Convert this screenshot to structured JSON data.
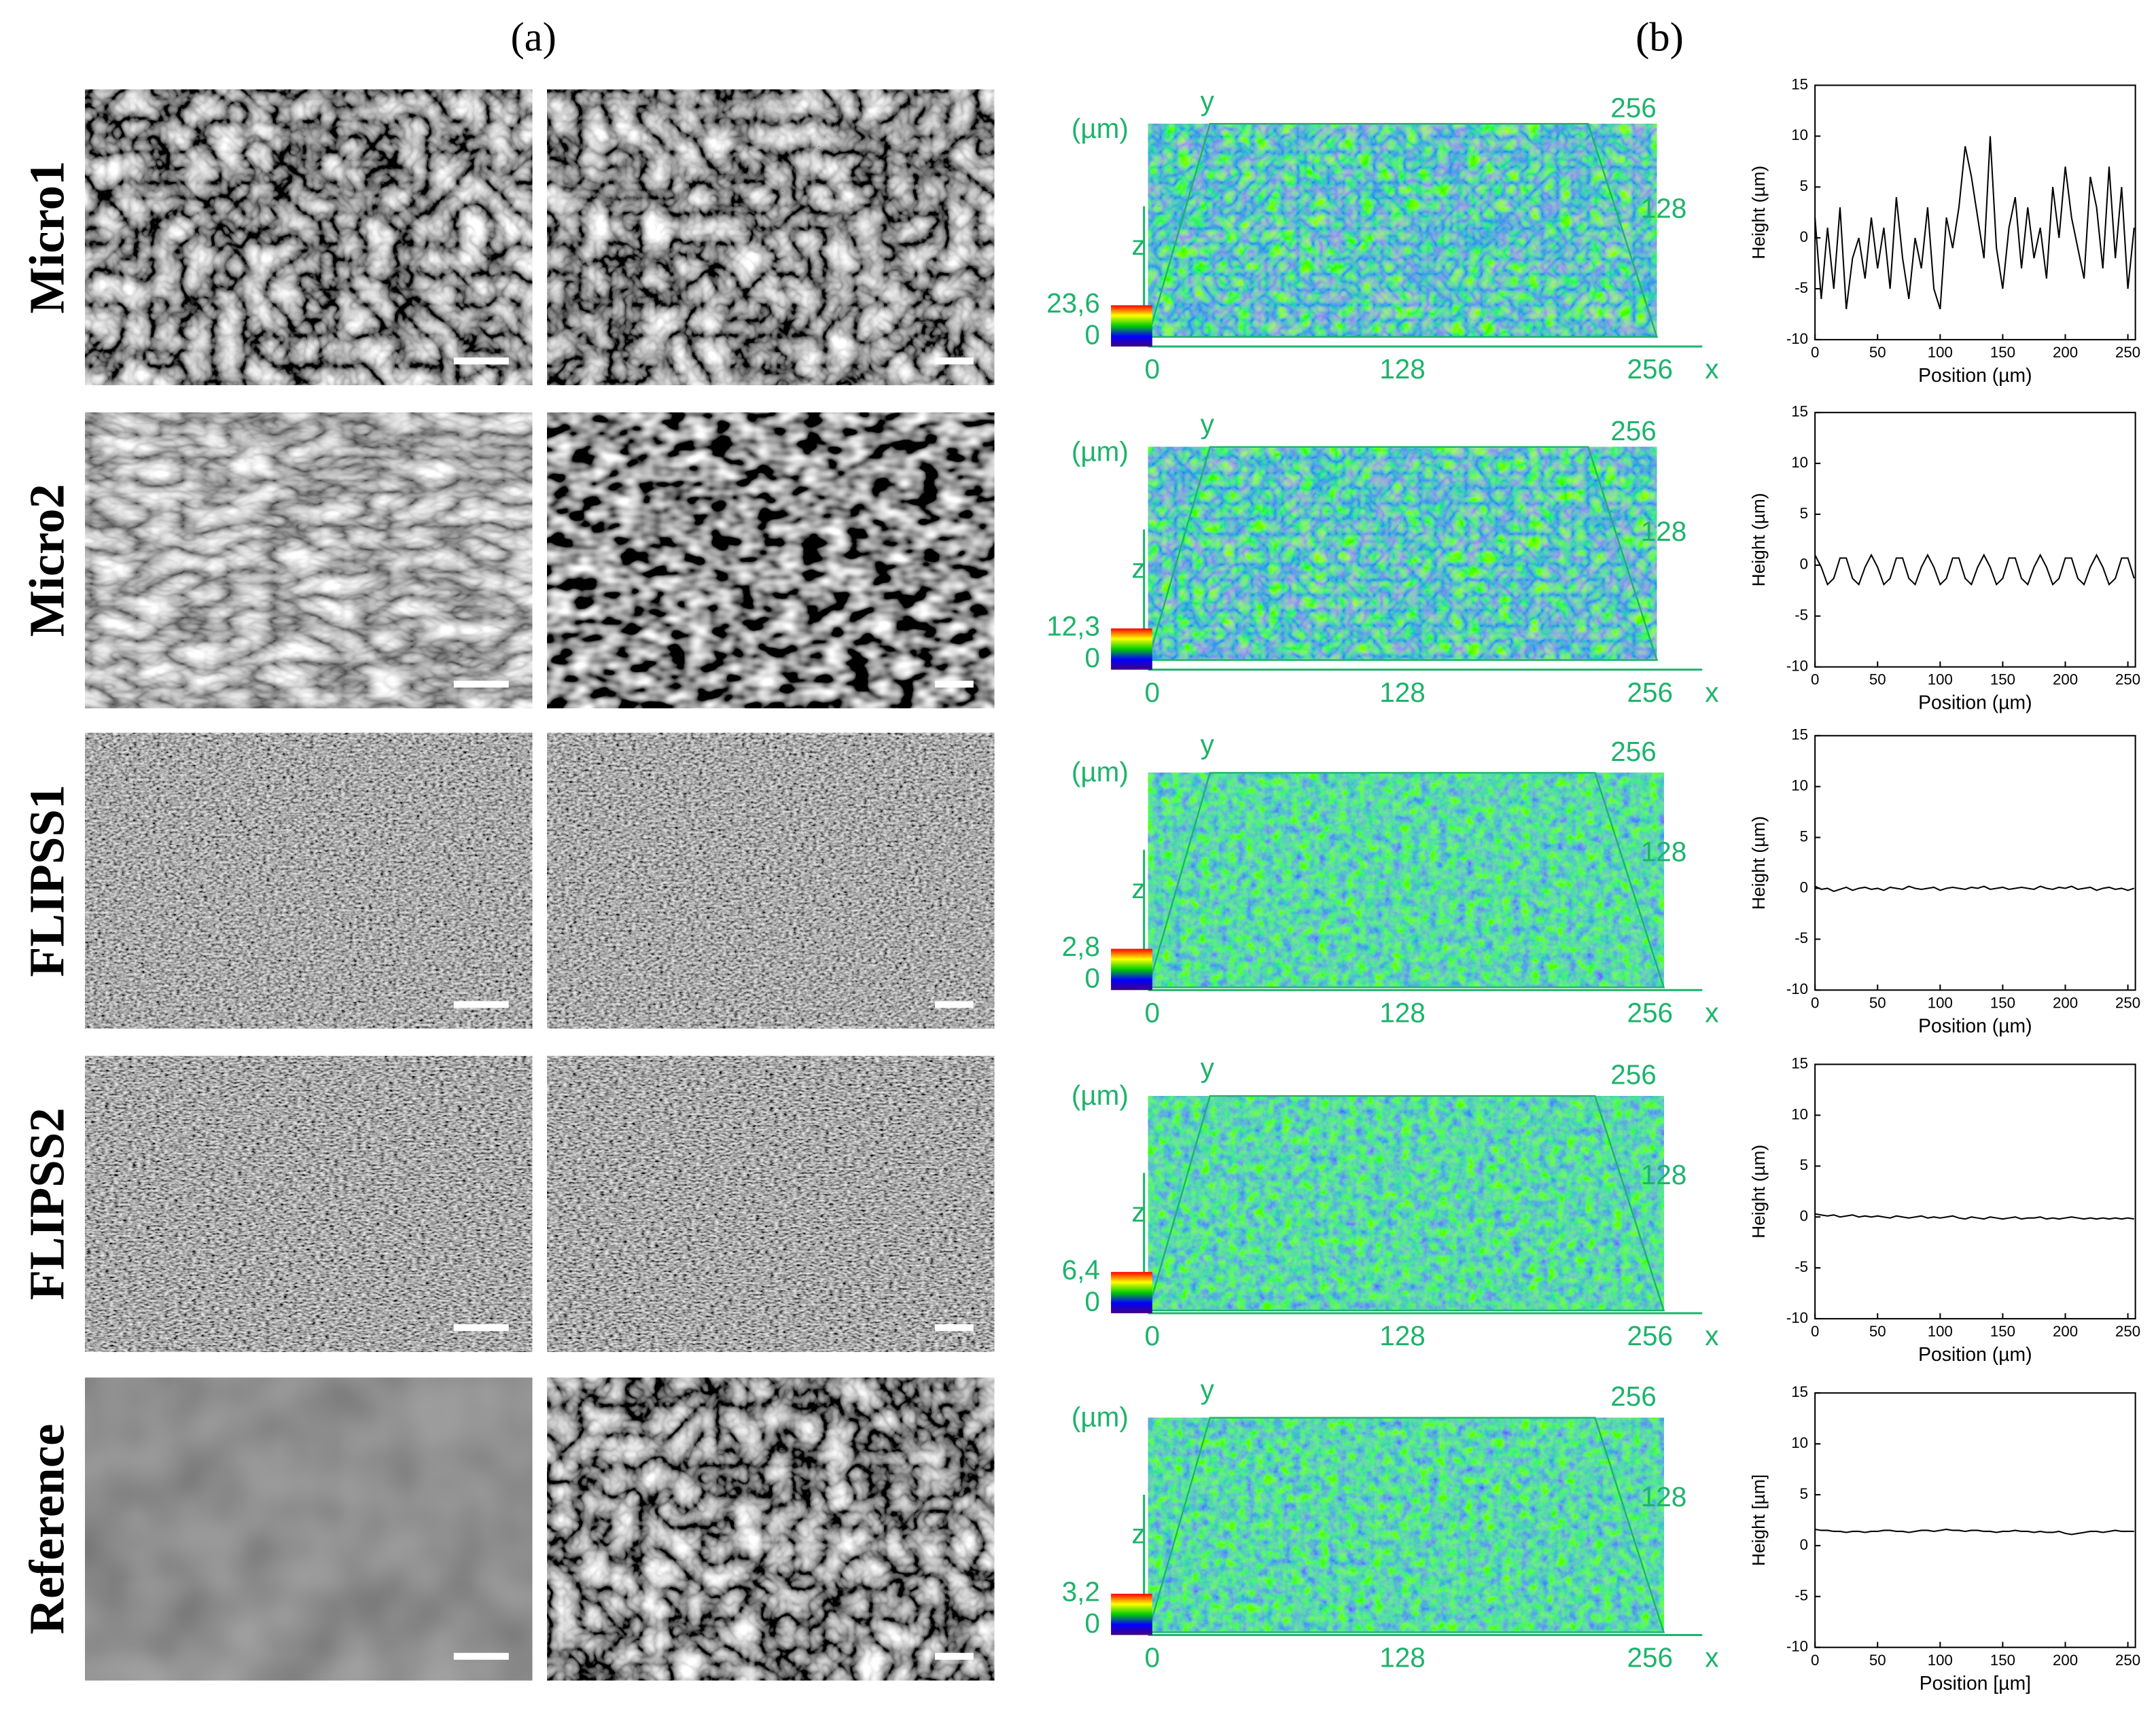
{
  "figure": {
    "panel_a": "(a)",
    "panel_b": "(b)",
    "rows": [
      {
        "label": "Micro1",
        "unit": "(µm)",
        "scale_max": "23,6",
        "scale_min": "0",
        "x_axis": "x",
        "y_axis": "y",
        "z_axis": "z",
        "x_ticks": [
          0,
          128,
          256
        ],
        "y_ticks": [
          128,
          256
        ]
      },
      {
        "label": "Micro2",
        "unit": "(µm)",
        "scale_max": "12,3",
        "scale_min": "0",
        "x_axis": "x",
        "y_axis": "y",
        "z_axis": "z",
        "x_ticks": [
          0,
          128,
          256
        ],
        "y_ticks": [
          128,
          256
        ]
      },
      {
        "label": "FLIPSS1",
        "unit": "(µm)",
        "scale_max": "2,8",
        "scale_min": "0",
        "x_axis": "x",
        "y_axis": "y",
        "z_axis": "z",
        "x_ticks": [
          0,
          128,
          256
        ],
        "y_ticks": [
          128,
          256
        ]
      },
      {
        "label": "FLIPSS2",
        "unit": "(µm)",
        "scale_max": "6,4",
        "scale_min": "0",
        "x_axis": "x",
        "y_axis": "y",
        "z_axis": "z",
        "x_ticks": [
          0,
          128,
          256
        ],
        "y_ticks": [
          128,
          256
        ]
      },
      {
        "label": "Reference",
        "unit": "(µm)",
        "scale_max": "3,2",
        "scale_min": "0",
        "x_axis": "x",
        "y_axis": "y",
        "z_axis": "z",
        "x_ticks": [
          0,
          128,
          256
        ],
        "y_ticks": [
          128,
          256
        ]
      }
    ]
  },
  "chart_data": [
    {
      "type": "line",
      "x_label": "Position (µm)",
      "y_label": "Height (µm)",
      "color": "#000000",
      "xlim": [
        0,
        256
      ],
      "ylim": [
        -10,
        15
      ],
      "xticks": [
        0,
        50,
        100,
        150,
        200,
        250
      ],
      "yticks": [
        -10,
        -5,
        0,
        5,
        10,
        15
      ],
      "x": [
        0,
        5,
        10,
        15,
        20,
        25,
        30,
        35,
        40,
        45,
        50,
        55,
        60,
        65,
        70,
        75,
        80,
        85,
        90,
        95,
        100,
        105,
        110,
        115,
        120,
        125,
        130,
        135,
        140,
        145,
        150,
        155,
        160,
        165,
        170,
        175,
        180,
        185,
        190,
        195,
        200,
        205,
        210,
        215,
        220,
        225,
        230,
        235,
        240,
        245,
        250,
        255
      ],
      "values": [
        2,
        -6,
        1,
        -5,
        3,
        -7,
        -2,
        0,
        -4,
        2,
        -3,
        1,
        -5,
        4,
        -2,
        -6,
        0,
        -3,
        3,
        -5,
        -7,
        2,
        -1,
        3,
        9,
        6,
        2,
        -2,
        10,
        -1,
        -5,
        1,
        4,
        -3,
        3,
        -2,
        1,
        -4,
        5,
        0,
        7,
        2,
        -1,
        -4,
        6,
        3,
        -3,
        7,
        -2,
        5,
        -5,
        1
      ]
    },
    {
      "type": "line",
      "x_label": "Position (µm)",
      "y_label": "Height (µm)",
      "color": "#000000",
      "xlim": [
        0,
        256
      ],
      "ylim": [
        -10,
        15
      ],
      "xticks": [
        0,
        50,
        100,
        150,
        200,
        250
      ],
      "yticks": [
        -10,
        -5,
        0,
        5,
        10,
        15
      ],
      "x": [
        0,
        5,
        10,
        15,
        20,
        25,
        30,
        35,
        40,
        45,
        50,
        55,
        60,
        65,
        70,
        75,
        80,
        85,
        90,
        95,
        100,
        105,
        110,
        115,
        120,
        125,
        130,
        135,
        140,
        145,
        150,
        155,
        160,
        165,
        170,
        175,
        180,
        185,
        190,
        195,
        200,
        205,
        210,
        215,
        220,
        225,
        230,
        235,
        240,
        245,
        250,
        255
      ],
      "values": [
        1.0,
        -0.2,
        -1.9,
        -1.3,
        0.7,
        0.7,
        -1.3,
        -1.9,
        -0.2,
        1.0,
        -0.2,
        -1.9,
        -1.3,
        0.7,
        0.7,
        -1.3,
        -1.9,
        -0.2,
        1.0,
        -0.2,
        -1.9,
        -1.3,
        0.7,
        0.7,
        -1.3,
        -1.9,
        -0.2,
        1.0,
        -0.2,
        -1.9,
        -1.3,
        0.7,
        0.7,
        -1.3,
        -1.9,
        -0.2,
        1.0,
        -0.2,
        -1.9,
        -1.3,
        0.7,
        0.7,
        -1.3,
        -1.9,
        -0.2,
        1.0,
        -0.2,
        -1.9,
        -1.3,
        0.7,
        0.7,
        -1.3
      ]
    },
    {
      "type": "line",
      "x_label": "Position (µm)",
      "y_label": "Height (µm)",
      "color": "#000000",
      "xlim": [
        0,
        256
      ],
      "ylim": [
        -10,
        15
      ],
      "xticks": [
        0,
        50,
        100,
        150,
        200,
        250
      ],
      "yticks": [
        -10,
        -5,
        0,
        5,
        10,
        15
      ],
      "x": [
        0,
        5,
        10,
        15,
        20,
        25,
        30,
        35,
        40,
        45,
        50,
        55,
        60,
        65,
        70,
        75,
        80,
        85,
        90,
        95,
        100,
        105,
        110,
        115,
        120,
        125,
        130,
        135,
        140,
        145,
        150,
        155,
        160,
        165,
        170,
        175,
        180,
        185,
        190,
        195,
        200,
        205,
        210,
        215,
        220,
        225,
        230,
        235,
        240,
        245,
        250,
        255
      ],
      "values": [
        0.2,
        -0.1,
        0,
        -0.3,
        -0.1,
        0.1,
        -0.2,
        0,
        0.1,
        -0.1,
        0,
        -0.2,
        0.1,
        0,
        -0.1,
        0.2,
        0,
        -0.1,
        0,
        0.1,
        -0.2,
        0,
        0.1,
        0,
        -0.1,
        0.1,
        0,
        0.2,
        -0.1,
        0,
        0.1,
        -0.1,
        0,
        0.1,
        0,
        -0.1,
        0.2,
        0,
        -0.1,
        0.1,
        0,
        0.2,
        -0.1,
        0,
        0.1,
        -0.2,
        0,
        0.1,
        -0.1,
        0,
        -0.2,
        0
      ]
    },
    {
      "type": "line",
      "x_label": "Position (µm)",
      "y_label": "Height (µm)",
      "color": "#000000",
      "xlim": [
        0,
        256
      ],
      "ylim": [
        -10,
        15
      ],
      "xticks": [
        0,
        50,
        100,
        150,
        200,
        250
      ],
      "yticks": [
        -10,
        -5,
        0,
        5,
        10,
        15
      ],
      "x": [
        0,
        5,
        10,
        15,
        20,
        25,
        30,
        35,
        40,
        45,
        50,
        55,
        60,
        65,
        70,
        75,
        80,
        85,
        90,
        95,
        100,
        105,
        110,
        115,
        120,
        125,
        130,
        135,
        140,
        145,
        150,
        155,
        160,
        165,
        170,
        175,
        180,
        185,
        190,
        195,
        200,
        205,
        210,
        215,
        220,
        225,
        230,
        235,
        240,
        245,
        250,
        255
      ],
      "values": [
        0.3,
        0.2,
        0.1,
        0.2,
        0,
        0.1,
        0.2,
        0,
        0.1,
        0,
        0.1,
        0,
        -0.1,
        0.1,
        0,
        -0.1,
        0,
        0.1,
        -0.1,
        0,
        -0.1,
        0,
        0.1,
        -0.1,
        -0.2,
        0,
        -0.1,
        -0.2,
        0,
        -0.1,
        -0.2,
        -0.1,
        0,
        -0.2,
        -0.1,
        -0.1,
        0,
        -0.2,
        -0.1,
        -0.2,
        -0.1,
        0,
        -0.1,
        -0.2,
        -0.1,
        -0.2,
        -0.1,
        -0.2,
        -0.1,
        -0.2,
        -0.1,
        -0.2
      ]
    },
    {
      "type": "line",
      "x_label": "Position [µm]",
      "y_label": "Height [µm]",
      "color": "#000000",
      "xlim": [
        0,
        256
      ],
      "ylim": [
        -10,
        15
      ],
      "xticks": [
        0,
        50,
        100,
        150,
        200,
        250
      ],
      "yticks": [
        -10,
        -5,
        0,
        5,
        10,
        15
      ],
      "x": [
        0,
        5,
        10,
        15,
        20,
        25,
        30,
        35,
        40,
        45,
        50,
        55,
        60,
        65,
        70,
        75,
        80,
        85,
        90,
        95,
        100,
        105,
        110,
        115,
        120,
        125,
        130,
        135,
        140,
        145,
        150,
        155,
        160,
        165,
        170,
        175,
        180,
        185,
        190,
        195,
        200,
        205,
        210,
        215,
        220,
        225,
        230,
        235,
        240,
        245,
        250,
        255
      ],
      "values": [
        1.6,
        1.5,
        1.5,
        1.4,
        1.4,
        1.3,
        1.4,
        1.4,
        1.3,
        1.4,
        1.4,
        1.5,
        1.5,
        1.4,
        1.4,
        1.3,
        1.4,
        1.5,
        1.5,
        1.4,
        1.5,
        1.6,
        1.5,
        1.5,
        1.4,
        1.5,
        1.5,
        1.4,
        1.4,
        1.3,
        1.4,
        1.4,
        1.5,
        1.4,
        1.4,
        1.3,
        1.4,
        1.3,
        1.3,
        1.4,
        1.2,
        1.1,
        1.2,
        1.3,
        1.4,
        1.4,
        1.3,
        1.4,
        1.5,
        1.4,
        1.4,
        1.4
      ]
    }
  ]
}
